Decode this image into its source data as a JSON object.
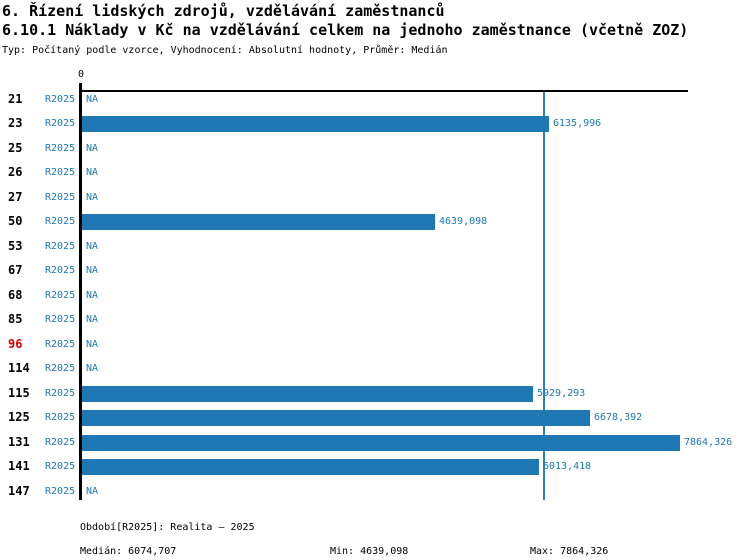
{
  "header": {
    "title1": "6. Řízení lidských zdrojů, vzdělávání zaměstnanců",
    "title2": "6.10.1 Náklady v Kč na vzdělávání celkem na jednoho zaměstnance (včetně ZOZ)",
    "subtitle": "Typ: Počítaný podle vzorce, Vyhodnocení: Absolutní hodnoty, Průměr: Medián"
  },
  "chart": {
    "zero_tick": "0",
    "axis_max": 7968,
    "median_value": 6074.707,
    "colors": {
      "bar": "#1f77b4",
      "text_blue": "#1f77b4",
      "median_line": "#2d7fbe",
      "row_highlight": "#d40000",
      "axis": "#000000"
    },
    "rows": [
      {
        "id": "21",
        "series": "R2025",
        "value": null,
        "label": "NA",
        "highlight": false
      },
      {
        "id": "23",
        "series": "R2025",
        "value": 6135.996,
        "label": "6135,996",
        "highlight": false
      },
      {
        "id": "25",
        "series": "R2025",
        "value": null,
        "label": "NA",
        "highlight": false
      },
      {
        "id": "26",
        "series": "R2025",
        "value": null,
        "label": "NA",
        "highlight": false
      },
      {
        "id": "27",
        "series": "R2025",
        "value": null,
        "label": "NA",
        "highlight": false
      },
      {
        "id": "50",
        "series": "R2025",
        "value": 4639.098,
        "label": "4639,098",
        "highlight": false
      },
      {
        "id": "53",
        "series": "R2025",
        "value": null,
        "label": "NA",
        "highlight": false
      },
      {
        "id": "67",
        "series": "R2025",
        "value": null,
        "label": "NA",
        "highlight": false
      },
      {
        "id": "68",
        "series": "R2025",
        "value": null,
        "label": "NA",
        "highlight": false
      },
      {
        "id": "85",
        "series": "R2025",
        "value": null,
        "label": "NA",
        "highlight": false
      },
      {
        "id": "96",
        "series": "R2025",
        "value": null,
        "label": "NA",
        "highlight": true
      },
      {
        "id": "114",
        "series": "R2025",
        "value": null,
        "label": "NA",
        "highlight": false
      },
      {
        "id": "115",
        "series": "R2025",
        "value": 5929.293,
        "label": "5929,293",
        "highlight": false
      },
      {
        "id": "125",
        "series": "R2025",
        "value": 6678.392,
        "label": "6678,392",
        "highlight": false
      },
      {
        "id": "131",
        "series": "R2025",
        "value": 7864.326,
        "label": "7864,326",
        "highlight": false
      },
      {
        "id": "141",
        "series": "R2025",
        "value": 6013.418,
        "label": "6013,418",
        "highlight": false
      },
      {
        "id": "147",
        "series": "R2025",
        "value": null,
        "label": "NA",
        "highlight": false
      }
    ]
  },
  "chart_data": {
    "type": "bar",
    "orientation": "horizontal",
    "title": "6.10.1 Náklady v Kč na vzdělávání celkem na jednoho zaměstnance (včetně ZOZ)",
    "categories": [
      "21",
      "23",
      "25",
      "26",
      "27",
      "50",
      "53",
      "67",
      "68",
      "85",
      "96",
      "114",
      "115",
      "125",
      "131",
      "141",
      "147"
    ],
    "series": [
      {
        "name": "R2025",
        "values": [
          null,
          6135.996,
          null,
          null,
          null,
          4639.098,
          null,
          null,
          null,
          null,
          null,
          null,
          5929.293,
          6678.392,
          7864.326,
          6013.418,
          null
        ]
      }
    ],
    "na_text": "NA",
    "xlim": [
      0,
      7968
    ],
    "x_ticks": [
      0
    ],
    "median": 6074.707,
    "min": 4639.098,
    "max": 7864.326,
    "grid": false,
    "legend": false
  },
  "footer": {
    "period": "Období[R2025]: Realita – 2025",
    "median": "Medián: 6074,707",
    "min": "Min: 4639,098",
    "max": "Max: 7864,326"
  }
}
